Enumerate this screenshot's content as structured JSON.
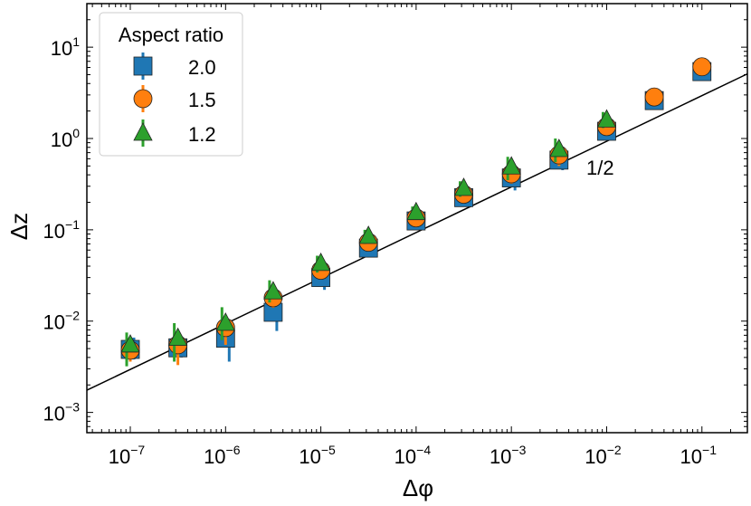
{
  "chart_data": {
    "type": "scatter",
    "xscale": "log",
    "yscale": "log",
    "xlim": [
      3.5e-08,
      0.3
    ],
    "ylim": [
      0.0006,
      30
    ],
    "xlabel": "Δφ",
    "ylabel": "Δz",
    "xtick_values": [
      1e-07,
      1e-06,
      1e-05,
      0.0001,
      0.001,
      0.01,
      0.1
    ],
    "xtick_exponents": [
      "−7",
      "−6",
      "−5",
      "−4",
      "−3",
      "−2",
      "−1"
    ],
    "ytick_values": [
      0.001,
      0.01,
      0.1,
      1,
      10
    ],
    "ytick_exponents": [
      "−3",
      "−2",
      "−1",
      "0",
      "1"
    ],
    "tick_base": "10",
    "legend": {
      "title": "Aspect ratio",
      "location": "upper-left",
      "entries": [
        "2.0",
        "1.5",
        "1.2"
      ]
    },
    "series": [
      {
        "name": "2.0",
        "marker": "square",
        "color": "#1f77b4",
        "x": [
          1e-07,
          3.16e-07,
          1e-06,
          3.16e-06,
          1e-05,
          3.16e-05,
          0.0001,
          0.000316,
          0.001,
          0.00316,
          0.01,
          0.0316,
          0.1
        ],
        "y": [
          0.0049,
          0.0051,
          0.0065,
          0.0125,
          0.03,
          0.063,
          0.125,
          0.225,
          0.37,
          0.58,
          1.2,
          2.6,
          5.4
        ],
        "yerr_low": [
          0.0038,
          0.004,
          0.0036,
          0.0078,
          0.022,
          0.05,
          0.1,
          0.185,
          0.27,
          0.45,
          1.0,
          2.2,
          4.6
        ],
        "yerr_high": [
          0.0066,
          0.0068,
          0.009,
          0.016,
          0.037,
          0.077,
          0.15,
          0.265,
          0.47,
          0.72,
          1.45,
          3.0,
          6.2
        ]
      },
      {
        "name": "1.5",
        "marker": "circle",
        "color": "#ff7f0e",
        "x": [
          1e-07,
          3.16e-07,
          1e-06,
          3.16e-06,
          1e-05,
          3.16e-05,
          0.0001,
          0.000316,
          0.001,
          0.00316,
          0.01,
          0.0316,
          0.1
        ],
        "y": [
          0.0048,
          0.0055,
          0.0085,
          0.018,
          0.036,
          0.073,
          0.135,
          0.245,
          0.41,
          0.66,
          1.35,
          2.85,
          6.1
        ],
        "yerr_low": [
          0.0036,
          0.0033,
          0.0055,
          0.014,
          0.029,
          0.06,
          0.11,
          0.2,
          0.32,
          0.5,
          1.15,
          2.5,
          5.3
        ],
        "yerr_high": [
          0.0062,
          0.0075,
          0.011,
          0.023,
          0.044,
          0.088,
          0.16,
          0.29,
          0.53,
          0.85,
          1.6,
          3.3,
          7.0
        ]
      },
      {
        "name": "1.2",
        "marker": "triangle",
        "color": "#2ca02c",
        "x": [
          1e-07,
          3.16e-07,
          1e-06,
          3.16e-06,
          1e-05,
          3.16e-05,
          0.0001,
          0.000316,
          0.001,
          0.00316,
          0.01
        ],
        "y": [
          0.0055,
          0.0065,
          0.0095,
          0.021,
          0.043,
          0.085,
          0.155,
          0.285,
          0.49,
          0.76,
          1.6
        ],
        "yerr_low": [
          0.0032,
          0.0036,
          0.0062,
          0.016,
          0.034,
          0.07,
          0.13,
          0.23,
          0.35,
          0.55,
          1.3
        ],
        "yerr_high": [
          0.0075,
          0.0095,
          0.0142,
          0.028,
          0.052,
          0.1,
          0.18,
          0.34,
          0.63,
          1.0,
          1.95
        ]
      }
    ],
    "reference_line": {
      "slope_label": "1/2",
      "slope": 0.5,
      "x": [
        3.5e-08,
        0.3
      ],
      "y": [
        0.00175,
        5.1
      ]
    }
  }
}
